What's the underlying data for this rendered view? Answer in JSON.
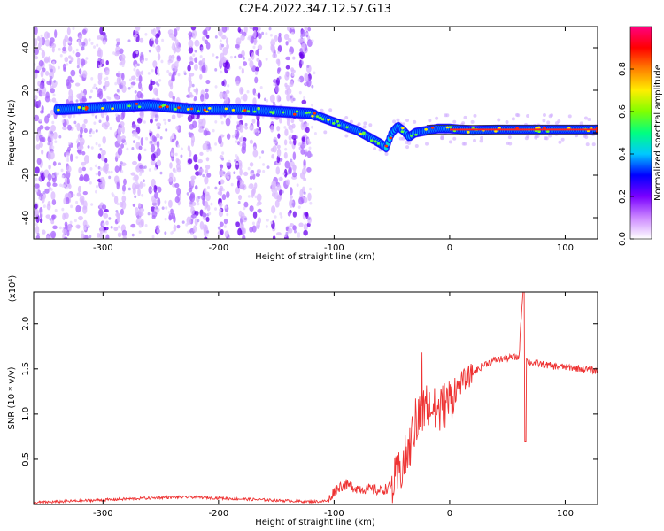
{
  "chart_data": [
    {
      "type": "heatmap",
      "title": "C2E4.2022.347.12.57.G13",
      "xlabel": "Height of straight line (km)",
      "ylabel": "Frequency (Hz)",
      "xlim": [
        -360,
        128
      ],
      "ylim": [
        -50,
        50
      ],
      "xticks": [
        -300,
        -200,
        -100,
        0,
        100
      ],
      "yticks": [
        -40,
        -20,
        0,
        20,
        40
      ],
      "colorbar": {
        "label": "Normalized spectral amplitude",
        "range": [
          0.0,
          1.0
        ],
        "ticks": [
          0.0,
          0.2,
          0.4,
          0.6,
          0.8
        ],
        "colormap": [
          "#ffffff",
          "#cc88ff",
          "#7a00ff",
          "#0000ff",
          "#00c8ff",
          "#00ff80",
          "#80ff00",
          "#ffee00",
          "#ff8000",
          "#ff0000",
          "#ff0080"
        ]
      },
      "ridge": {
        "x": [
          -335,
          -300,
          -260,
          -220,
          -180,
          -150,
          -120,
          -110,
          -100,
          -90,
          -80,
          -70,
          -60,
          -55,
          -50,
          -45,
          -40,
          -35,
          -30,
          -20,
          -10,
          0,
          20,
          40,
          60,
          80,
          100,
          128
        ],
        "y": [
          11,
          12,
          13,
          11,
          11,
          10,
          9,
          7,
          5,
          3,
          1,
          -2,
          -5,
          -7,
          0,
          3,
          1,
          -2,
          0,
          1,
          2,
          2,
          1,
          1.5,
          1.5,
          1.5,
          1.5,
          1.5
        ]
      }
    },
    {
      "type": "line",
      "xlabel": "Height of straight line (km)",
      "ylabel": "SNR (10 * v/v)",
      "y_multiplier": "(x10⁴)",
      "xlim": [
        -360,
        128
      ],
      "ylim": [
        0,
        2.35
      ],
      "xticks": [
        -300,
        -200,
        -100,
        0,
        100
      ],
      "yticks": [
        0.5,
        1.0,
        1.5,
        2.0
      ],
      "ytick_labels": [
        "0.5",
        "1.0",
        "1.5",
        "2.0"
      ],
      "color": "#ee3333",
      "series": [
        {
          "x": [
            -360,
            -340,
            -320,
            -300,
            -280,
            -260,
            -240,
            -220,
            -200,
            -180,
            -160,
            -140,
            -120,
            -105,
            -100,
            -95,
            -90,
            -85,
            -80,
            -70,
            -60,
            -50,
            -45,
            -40,
            -35,
            -30,
            -25,
            -20,
            -15,
            -10,
            -5,
            0,
            5,
            10,
            20,
            30,
            40,
            50,
            60,
            63,
            65,
            66,
            68,
            70,
            80,
            90,
            100,
            110,
            120,
            128
          ],
          "y": [
            0.02,
            0.03,
            0.04,
            0.05,
            0.06,
            0.07,
            0.08,
            0.08,
            0.07,
            0.06,
            0.05,
            0.04,
            0.03,
            0.04,
            0.15,
            0.2,
            0.22,
            0.2,
            0.18,
            0.17,
            0.15,
            0.2,
            0.3,
            0.45,
            0.6,
            0.9,
            1.0,
            1.1,
            1.05,
            1.0,
            1.1,
            1.15,
            1.25,
            1.35,
            1.45,
            1.55,
            1.6,
            1.62,
            1.63,
            2.3,
            0.7,
            1.6,
            1.58,
            1.57,
            1.55,
            1.53,
            1.52,
            1.51,
            1.49,
            1.48
          ]
        }
      ]
    }
  ]
}
